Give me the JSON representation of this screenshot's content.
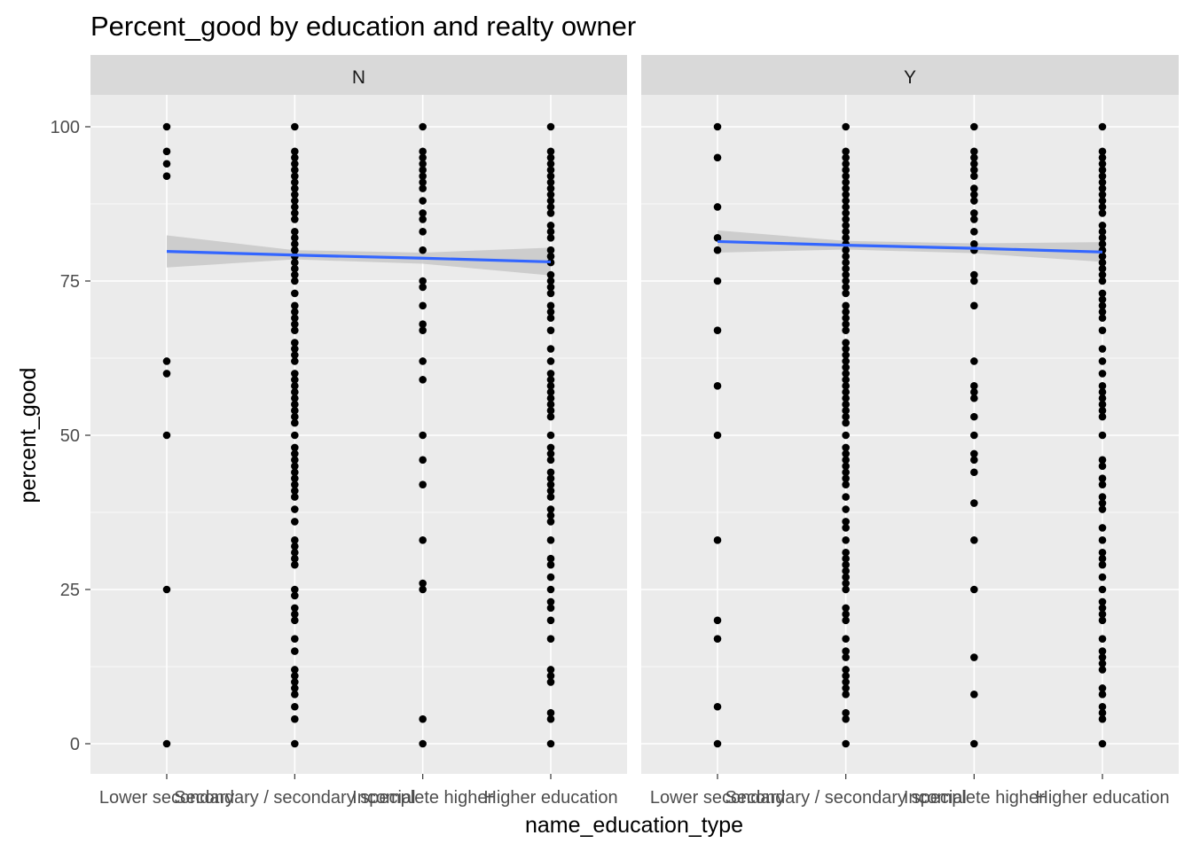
{
  "chart_data": {
    "type": "scatter",
    "title": "Percent_good by education and realty owner",
    "xlabel": "name_education_type",
    "ylabel": "percent_good",
    "categories": [
      "Lower secondary",
      "Secondary / secondary special",
      "Incomplete higher",
      "Higher education"
    ],
    "ylim": [
      -5,
      105
    ],
    "yticks": [
      0,
      25,
      50,
      75,
      100
    ],
    "grid": true,
    "legend": "none",
    "colors": {
      "panel_bg": "#ebebeb",
      "strip_bg": "#d9d9d9",
      "grid": "#ffffff",
      "point": "#000000",
      "smooth_line": "#3366ff",
      "smooth_band": "#c8c8c8"
    },
    "facets": [
      {
        "label": "N",
        "points": [
          [
            0,
            [
              0,
              25,
              50,
              60,
              62,
              92,
              94,
              96,
              100
            ]
          ],
          [
            1,
            [
              0,
              4,
              6,
              8,
              9,
              10,
              11,
              12,
              15,
              17,
              20,
              21,
              22,
              24,
              25,
              29,
              30,
              31,
              32,
              33,
              36,
              38,
              40,
              41,
              42,
              43,
              44,
              45,
              46,
              47,
              48,
              50,
              52,
              53,
              54,
              55,
              56,
              57,
              58,
              59,
              60,
              62,
              63,
              64,
              65,
              67,
              68,
              69,
              70,
              71,
              73,
              75,
              76,
              77,
              78,
              79,
              80,
              81,
              82,
              83,
              85,
              86,
              87,
              88,
              89,
              90,
              91,
              92,
              93,
              94,
              95,
              96,
              100
            ]
          ],
          [
            2,
            [
              0,
              4,
              25,
              26,
              33,
              42,
              46,
              50,
              59,
              62,
              67,
              68,
              71,
              74,
              75,
              80,
              83,
              85,
              86,
              88,
              90,
              91,
              92,
              93,
              94,
              95,
              96,
              100
            ]
          ],
          [
            3,
            [
              0,
              4,
              5,
              10,
              11,
              12,
              17,
              20,
              22,
              23,
              25,
              27,
              29,
              30,
              33,
              36,
              37,
              38,
              40,
              41,
              42,
              43,
              44,
              46,
              47,
              48,
              50,
              53,
              54,
              55,
              56,
              57,
              58,
              59,
              60,
              62,
              64,
              67,
              69,
              70,
              71,
              73,
              74,
              75,
              76,
              78,
              79,
              80,
              82,
              83,
              84,
              86,
              87,
              88,
              89,
              90,
              91,
              92,
              93,
              94,
              95,
              96,
              100
            ]
          ]
        ],
        "smooth": {
          "x": [
            0,
            1,
            2,
            3
          ],
          "y": [
            79.8,
            79.2,
            78.7,
            78.1
          ],
          "lower": [
            77.2,
            78.5,
            77.8,
            75.9
          ],
          "upper": [
            82.4,
            80.0,
            79.6,
            80.4
          ]
        }
      },
      {
        "label": "Y",
        "points": [
          [
            0,
            [
              0,
              6,
              17,
              20,
              33,
              50,
              58,
              67,
              75,
              80,
              82,
              87,
              95,
              100
            ]
          ],
          [
            1,
            [
              0,
              4,
              5,
              8,
              9,
              10,
              11,
              12,
              14,
              15,
              17,
              20,
              21,
              22,
              25,
              26,
              27,
              28,
              29,
              30,
              31,
              33,
              35,
              36,
              38,
              40,
              42,
              43,
              44,
              45,
              46,
              47,
              48,
              50,
              52,
              53,
              54,
              55,
              56,
              57,
              58,
              59,
              60,
              61,
              62,
              63,
              64,
              65,
              67,
              68,
              69,
              70,
              71,
              73,
              74,
              75,
              76,
              77,
              78,
              79,
              80,
              81,
              82,
              83,
              84,
              85,
              86,
              87,
              88,
              89,
              90,
              91,
              92,
              93,
              94,
              95,
              96,
              100
            ]
          ],
          [
            2,
            [
              0,
              8,
              14,
              25,
              33,
              39,
              44,
              46,
              47,
              50,
              53,
              56,
              57,
              58,
              62,
              71,
              75,
              76,
              80,
              81,
              83,
              85,
              86,
              88,
              89,
              90,
              92,
              93,
              94,
              95,
              96,
              100
            ]
          ],
          [
            3,
            [
              0,
              4,
              5,
              6,
              8,
              9,
              12,
              13,
              14,
              15,
              17,
              20,
              21,
              22,
              23,
              25,
              27,
              29,
              30,
              31,
              33,
              35,
              38,
              39,
              40,
              42,
              43,
              45,
              46,
              50,
              53,
              54,
              55,
              56,
              57,
              58,
              60,
              62,
              64,
              67,
              69,
              70,
              71,
              72,
              73,
              75,
              76,
              77,
              78,
              79,
              80,
              81,
              82,
              83,
              84,
              86,
              87,
              88,
              89,
              90,
              91,
              92,
              93,
              94,
              95,
              96,
              100
            ]
          ]
        ],
        "smooth": {
          "x": [
            0,
            1,
            2,
            3
          ],
          "y": [
            81.4,
            80.8,
            80.3,
            79.7
          ],
          "lower": [
            79.6,
            80.1,
            79.5,
            78.1
          ],
          "upper": [
            83.2,
            81.5,
            81.1,
            81.3
          ]
        }
      }
    ]
  }
}
